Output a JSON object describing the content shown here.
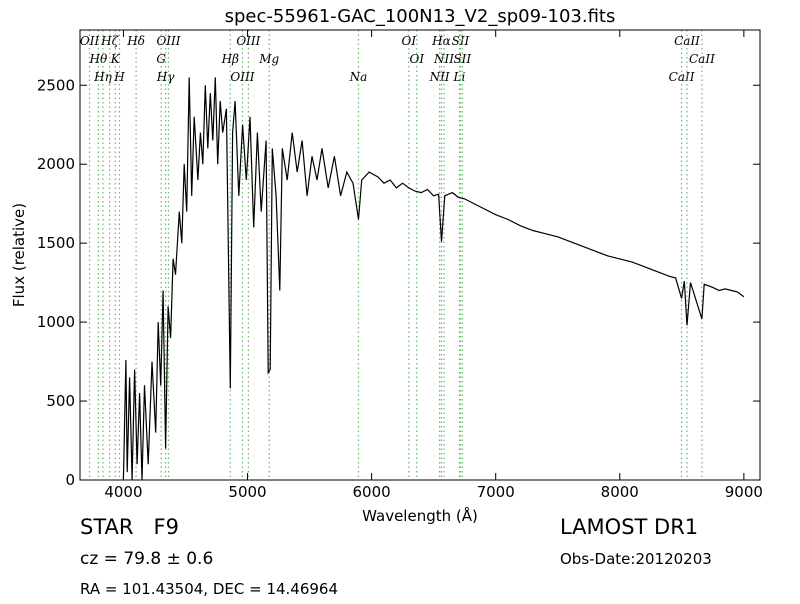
{
  "chart_data": {
    "type": "line",
    "title": "spec-55961-GAC_100N13_V2_sp09-103.fits",
    "xlabel": "Wavelength (Å)",
    "ylabel": "Flux (relative)",
    "xlim": [
      3650,
      9130
    ],
    "ylim": [
      0,
      2850
    ],
    "xticks": [
      4000,
      5000,
      6000,
      7000,
      8000,
      9000
    ],
    "yticks": [
      0,
      500,
      1000,
      1500,
      2000,
      2500
    ],
    "x": [
      4000,
      4020,
      4030,
      4050,
      4070,
      4090,
      4110,
      4130,
      4150,
      4170,
      4200,
      4230,
      4260,
      4280,
      4300,
      4320,
      4340,
      4360,
      4380,
      4400,
      4420,
      4450,
      4470,
      4490,
      4510,
      4530,
      4550,
      4570,
      4600,
      4620,
      4640,
      4660,
      4680,
      4700,
      4720,
      4740,
      4760,
      4780,
      4800,
      4830,
      4861,
      4880,
      4900,
      4930,
      4960,
      4990,
      5020,
      5050,
      5080,
      5110,
      5150,
      5167,
      5183,
      5200,
      5230,
      5260,
      5280,
      5320,
      5360,
      5400,
      5440,
      5480,
      5520,
      5560,
      5600,
      5650,
      5700,
      5750,
      5800,
      5850,
      5894,
      5920,
      5980,
      6050,
      6100,
      6150,
      6200,
      6250,
      6300,
      6350,
      6400,
      6450,
      6500,
      6540,
      6563,
      6590,
      6650,
      6700,
      6750,
      6800,
      6900,
      7000,
      7100,
      7200,
      7300,
      7400,
      7500,
      7600,
      7700,
      7800,
      7900,
      8000,
      8100,
      8200,
      8300,
      8400,
      8450,
      8498,
      8520,
      8542,
      8570,
      8662,
      8680,
      8750,
      8800,
      8850,
      8900,
      8950,
      9000
    ],
    "series": [
      {
        "name": "flux",
        "color": "#000000",
        "values": [
          0,
          760,
          50,
          650,
          0,
          700,
          100,
          550,
          0,
          600,
          100,
          750,
          300,
          1000,
          600,
          1200,
          200,
          1100,
          900,
          1400,
          1300,
          1700,
          1500,
          2000,
          1700,
          2550,
          1800,
          2300,
          1900,
          2200,
          2000,
          2500,
          2100,
          2450,
          2150,
          2550,
          2000,
          2400,
          2200,
          2350,
          580,
          2200,
          2400,
          1800,
          2250,
          1900,
          2300,
          1600,
          2200,
          1700,
          2150,
          680,
          700,
          2100,
          1800,
          1200,
          2100,
          1900,
          2200,
          1950,
          2150,
          1800,
          2050,
          1900,
          2100,
          1850,
          2050,
          1800,
          1950,
          1880,
          1650,
          1900,
          1950,
          1920,
          1880,
          1900,
          1850,
          1880,
          1850,
          1830,
          1820,
          1840,
          1800,
          1810,
          1510,
          1800,
          1820,
          1790,
          1780,
          1760,
          1720,
          1680,
          1650,
          1610,
          1580,
          1560,
          1540,
          1510,
          1480,
          1450,
          1420,
          1400,
          1380,
          1350,
          1320,
          1290,
          1280,
          1150,
          1260,
          980,
          1250,
          1020,
          1240,
          1220,
          1200,
          1210,
          1200,
          1190,
          1160
        ]
      }
    ],
    "line_color": "#66bb66",
    "lines": [
      {
        "label": "OII",
        "x": 3727
      },
      {
        "label": "Hθ",
        "x": 3798
      },
      {
        "label": "Hη",
        "x": 3835
      },
      {
        "label": "Hζ",
        "x": 3889
      },
      {
        "label": "K",
        "x": 3934
      },
      {
        "label": "H",
        "x": 3968
      },
      {
        "label": "Hδ",
        "x": 4102
      },
      {
        "label": "G",
        "x": 4304
      },
      {
        "label": "Hγ",
        "x": 4340
      },
      {
        "label": "OIII",
        "x": 4363
      },
      {
        "label": "Hβ",
        "x": 4861
      },
      {
        "label": "OIII",
        "x": 4959
      },
      {
        "label": "OIII",
        "x": 5007
      },
      {
        "label": "Mg",
        "x": 5175
      },
      {
        "label": "Na",
        "x": 5894
      },
      {
        "label": "OI",
        "x": 6300
      },
      {
        "label": "OI",
        "x": 6364
      },
      {
        "label": "NII",
        "x": 6548
      },
      {
        "label": "Hα",
        "x": 6563
      },
      {
        "label": "NII",
        "x": 6583
      },
      {
        "label": "Li",
        "x": 6708
      },
      {
        "label": "SII",
        "x": 6716
      },
      {
        "label": "SII",
        "x": 6731
      },
      {
        "label": "CaII",
        "x": 8498
      },
      {
        "label": "CaII",
        "x": 8542
      },
      {
        "label": "CaII",
        "x": 8662
      }
    ],
    "object_class": "STAR   F9",
    "redshift": "cz = 79.8 ± 0.6",
    "coords": "RA = 101.43504, DEC = 14.46964",
    "survey": "LAMOST DR1",
    "obs_date": "Obs-Date:20120203"
  }
}
